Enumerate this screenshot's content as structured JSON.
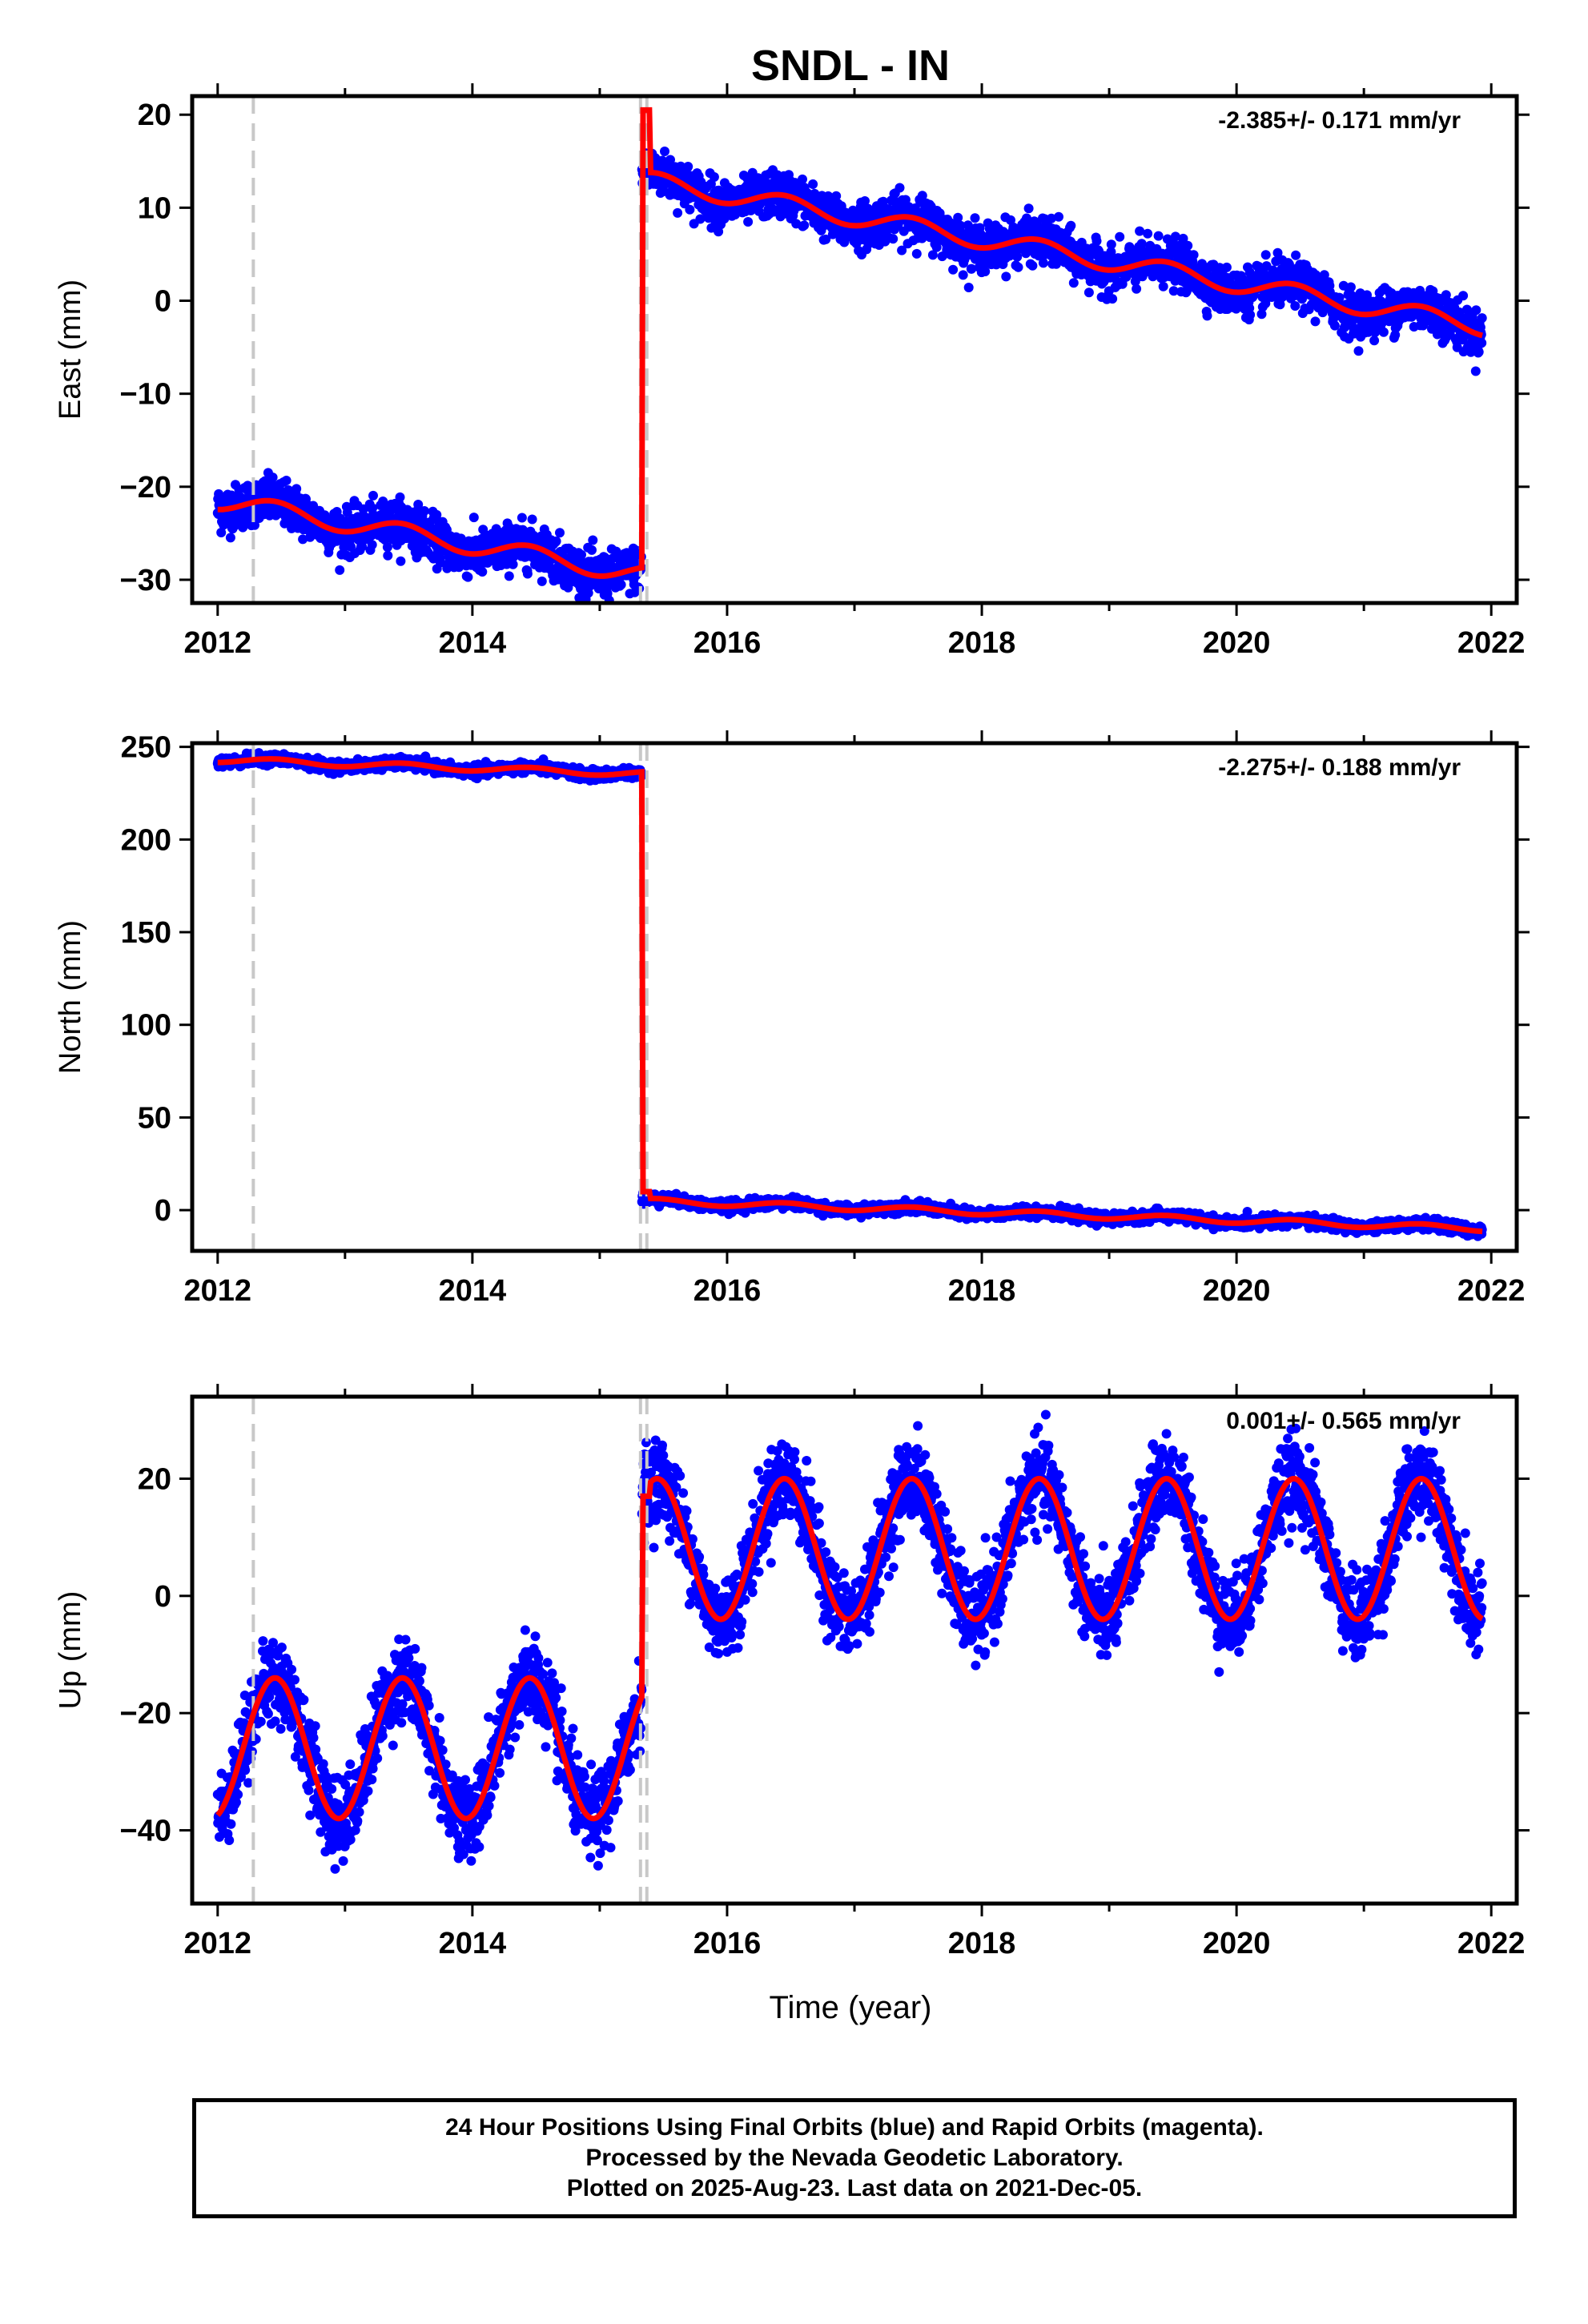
{
  "title": "SNDL - IN",
  "x_axis_label": "Time (year)",
  "footer": {
    "line1": "24 Hour Positions Using Final Orbits (blue) and Rapid Orbits (magenta).",
    "line2": "Processed by the Nevada Geodetic Laboratory.",
    "line3": "Plotted on 2025-Aug-23. Last data on 2021-Dec-05."
  },
  "colors": {
    "points": "#0000ff",
    "fit": "#ff0000",
    "events": "#c8c8c8",
    "frame": "#000000"
  },
  "chart_data": [
    {
      "type": "scatter",
      "ylabel": "East (mm)",
      "rate_label": "-2.385+/- 0.171 mm/yr",
      "xlim": [
        2011.8,
        2022.2
      ],
      "ylim": [
        -32.5,
        22
      ],
      "xticks": [
        2012,
        2014,
        2016,
        2018,
        2020,
        2022
      ],
      "yticks": [
        -30,
        -20,
        -10,
        0,
        10,
        20
      ],
      "events": [
        2012.28,
        2015.32,
        2015.37
      ],
      "model": {
        "offset_before": -21.5,
        "offset_after": 13.0,
        "rate": -2.385,
        "ref": 2012.0,
        "ref_after": 2015.33,
        "annual_amp": 1.0,
        "scatter": 1.2,
        "step_year": 2015.33,
        "peak_year": 2015.36,
        "peak_value": 20.5
      }
    },
    {
      "type": "scatter",
      "ylabel": "North (mm)",
      "rate_label": "-2.275+/- 0.188 mm/yr",
      "xlim": [
        2011.8,
        2022.2
      ],
      "ylim": [
        -22,
        252
      ],
      "xticks": [
        2012,
        2014,
        2016,
        2018,
        2020,
        2022
      ],
      "yticks": [
        0,
        50,
        100,
        150,
        200,
        250
      ],
      "events": [
        2012.28,
        2015.32,
        2015.37
      ],
      "model": {
        "offset_before": 243.0,
        "offset_after": 5.0,
        "rate": -2.275,
        "ref": 2012.0,
        "ref_after": 2015.33,
        "annual_amp": 1.5,
        "scatter": 1.4,
        "step_year": 2015.33,
        "peak_year": 2015.35,
        "peak_value": 10.0
      }
    },
    {
      "type": "scatter",
      "ylabel": "Up (mm)",
      "rate_label": "0.001+/- 0.565 mm/yr",
      "xlim": [
        2011.8,
        2022.2
      ],
      "ylim": [
        -52.5,
        34
      ],
      "xticks": [
        2012,
        2014,
        2016,
        2018,
        2020,
        2022
      ],
      "yticks": [
        -40,
        -20,
        0,
        20
      ],
      "events": [
        2012.28,
        2015.32,
        2015.37
      ],
      "model": {
        "offset_before": -26.0,
        "offset_after": 8.0,
        "rate": 0.001,
        "ref": 2012.0,
        "ref_after": 2015.33,
        "annual_amp": 12.0,
        "scatter": 3.5,
        "step_year": 2015.33,
        "peak_year": 2015.36,
        "peak_value": 17.0
      }
    }
  ]
}
